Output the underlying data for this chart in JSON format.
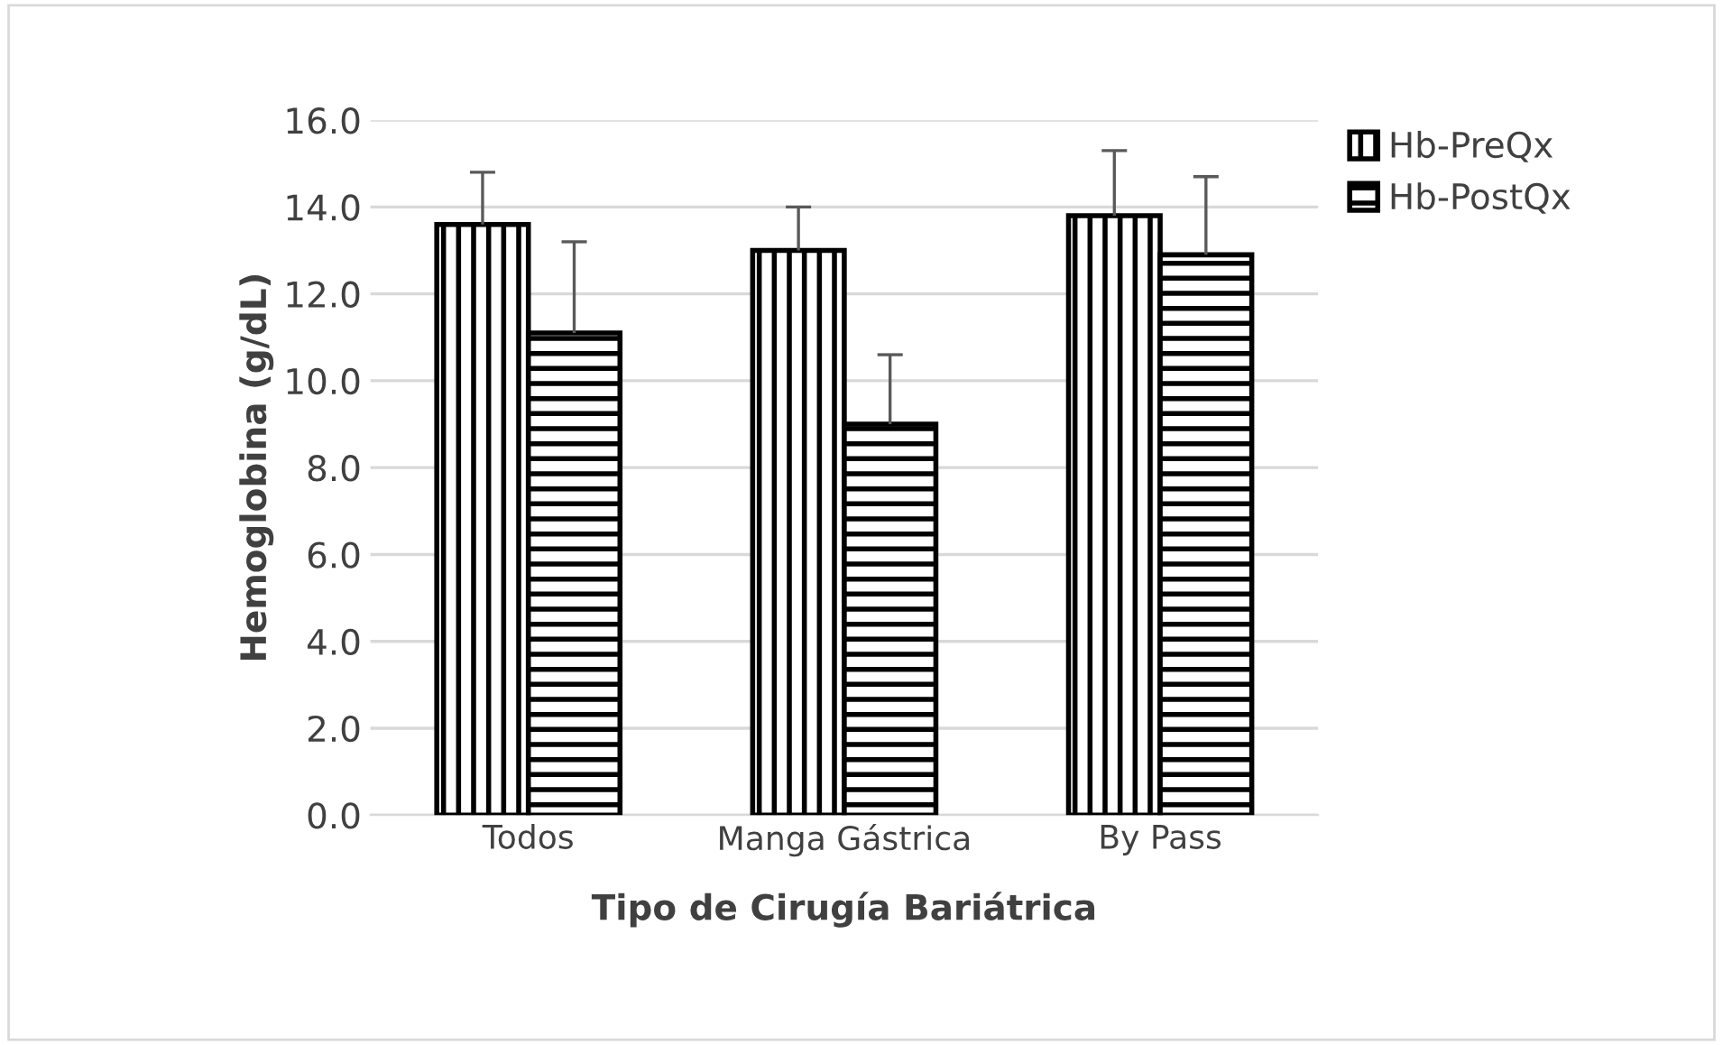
{
  "chart_data": {
    "type": "bar",
    "xlabel": "Tipo de Cirugía Bariátrica",
    "ylabel": "Hemoglobina (g/dL)",
    "categories": [
      "Todos",
      "Manga Gástrica",
      "By Pass"
    ],
    "series": [
      {
        "name": "Hb-PreQx",
        "color": "#000000",
        "values": [
          13.6,
          13.0,
          13.8
        ],
        "errors": [
          [
            13.6,
            14.8
          ],
          [
            13.0,
            14.0
          ],
          [
            13.8,
            15.3
          ]
        ]
      },
      {
        "name": "Hb-PostQx",
        "color": "#000000",
        "values": [
          11.1,
          9.0,
          12.9
        ],
        "errors": [
          [
            11.1,
            13.2
          ],
          [
            9.0,
            10.6
          ],
          [
            12.9,
            14.7
          ]
        ]
      }
    ],
    "ylim": [
      0,
      16
    ],
    "yticks": [
      {
        "value": 0,
        "label": "0.0"
      },
      {
        "value": 2,
        "label": "2.0"
      },
      {
        "value": 4,
        "label": "4.0"
      },
      {
        "value": 6,
        "label": "6.0"
      },
      {
        "value": 8,
        "label": "8.0"
      },
      {
        "value": 10,
        "label": "10.0"
      },
      {
        "value": 12,
        "label": "12.0"
      },
      {
        "value": 14,
        "label": "14.0"
      },
      {
        "value": 16,
        "label": "16.0"
      }
    ],
    "grid": "y",
    "legend": "right"
  }
}
